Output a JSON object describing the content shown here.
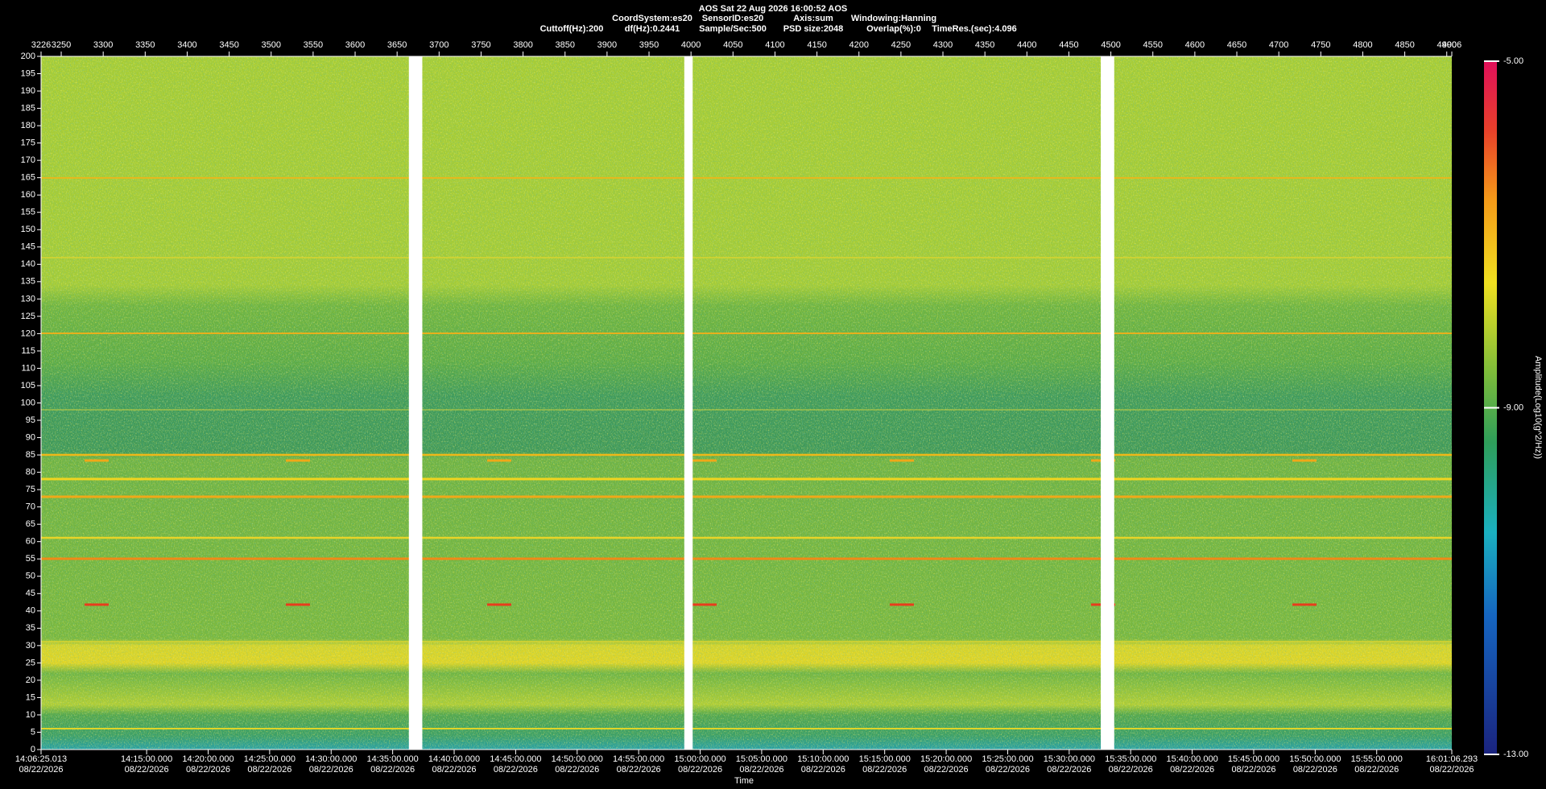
{
  "chart_data": {
    "type": "spectrogram",
    "title": "AOS  Sat 22 Aug 2026 16:00:52  AOS",
    "header_line1": [
      "CoordSystem:es20",
      "SensorID:es20",
      "Axis:sum",
      "Windowing:Hanning"
    ],
    "header_line2": [
      "Cuttoff(Hz):200",
      "df(Hz):0.2441",
      "Sample/Sec:500",
      "PSD size:2048",
      "Overlap(%):0",
      "TimeRes.(sec):4.096"
    ],
    "xlabel": "Time",
    "colorbar_label": "Amplitude(Log10(g^2/Hz))",
    "xlim": [
      3226,
      4906
    ],
    "xticks": [
      3226,
      3250,
      3300,
      3350,
      3400,
      3450,
      3500,
      3550,
      3600,
      3650,
      3700,
      3750,
      3800,
      3850,
      3900,
      3950,
      4000,
      4050,
      4100,
      4150,
      4200,
      4250,
      4300,
      4350,
      4400,
      4450,
      4500,
      4550,
      4600,
      4650,
      4700,
      4750,
      4800,
      4850,
      4900,
      4906
    ],
    "time_ticks": [
      {
        "value": 3226,
        "label": "14:06:25.013",
        "date": "08/22/2026"
      },
      {
        "value": 3351.73,
        "label": "14:15:00.000",
        "date": "08/22/2026"
      },
      {
        "value": 3424.97,
        "label": "14:20:00.000",
        "date": "08/22/2026"
      },
      {
        "value": 3498.21,
        "label": "14:25:00.000",
        "date": "08/22/2026"
      },
      {
        "value": 3571.45,
        "label": "14:30:00.000",
        "date": "08/22/2026"
      },
      {
        "value": 3644.7,
        "label": "14:35:00.000",
        "date": "08/22/2026"
      },
      {
        "value": 3717.94,
        "label": "14:40:00.000",
        "date": "08/22/2026"
      },
      {
        "value": 3791.18,
        "label": "14:45:00.000",
        "date": "08/22/2026"
      },
      {
        "value": 3864.42,
        "label": "14:50:00.000",
        "date": "08/22/2026"
      },
      {
        "value": 3937.67,
        "label": "14:55:00.000",
        "date": "08/22/2026"
      },
      {
        "value": 4010.91,
        "label": "15:00:00.000",
        "date": "08/22/2026"
      },
      {
        "value": 4084.15,
        "label": "15:05:00.000",
        "date": "08/22/2026"
      },
      {
        "value": 4157.39,
        "label": "15:10:00.000",
        "date": "08/22/2026"
      },
      {
        "value": 4230.64,
        "label": "15:15:00.000",
        "date": "08/22/2026"
      },
      {
        "value": 4303.88,
        "label": "15:20:00.000",
        "date": "08/22/2026"
      },
      {
        "value": 4377.12,
        "label": "15:25:00.000",
        "date": "08/22/2026"
      },
      {
        "value": 4450.36,
        "label": "15:30:00.000",
        "date": "08/22/2026"
      },
      {
        "value": 4523.6,
        "label": "15:35:00.000",
        "date": "08/22/2026"
      },
      {
        "value": 4596.85,
        "label": "15:40:00.000",
        "date": "08/22/2026"
      },
      {
        "value": 4670.09,
        "label": "15:45:00.000",
        "date": "08/22/2026"
      },
      {
        "value": 4743.33,
        "label": "15:50:00.000",
        "date": "08/22/2026"
      },
      {
        "value": 4816.57,
        "label": "15:55:00.000",
        "date": "08/22/2026"
      },
      {
        "value": 4906,
        "label": "16:01:06.293",
        "date": "08/22/2026"
      }
    ],
    "ylim": [
      0,
      200
    ],
    "yticks": [
      0,
      5,
      10,
      15,
      20,
      25,
      30,
      35,
      40,
      45,
      50,
      55,
      60,
      65,
      70,
      75,
      80,
      85,
      90,
      95,
      100,
      105,
      110,
      115,
      120,
      125,
      130,
      135,
      140,
      145,
      150,
      155,
      160,
      165,
      170,
      175,
      180,
      185,
      190,
      195,
      200
    ],
    "gaps": [
      [
        3664,
        3680
      ],
      [
        3992,
        4002
      ],
      [
        4488,
        4504
      ]
    ],
    "zlim": [
      -13,
      -5
    ],
    "zticks": [
      {
        "value": -13,
        "label": "-13.00"
      },
      {
        "value": -9,
        "label": "-9.00"
      },
      {
        "value": -5,
        "label": "-5.00"
      }
    ]
  }
}
